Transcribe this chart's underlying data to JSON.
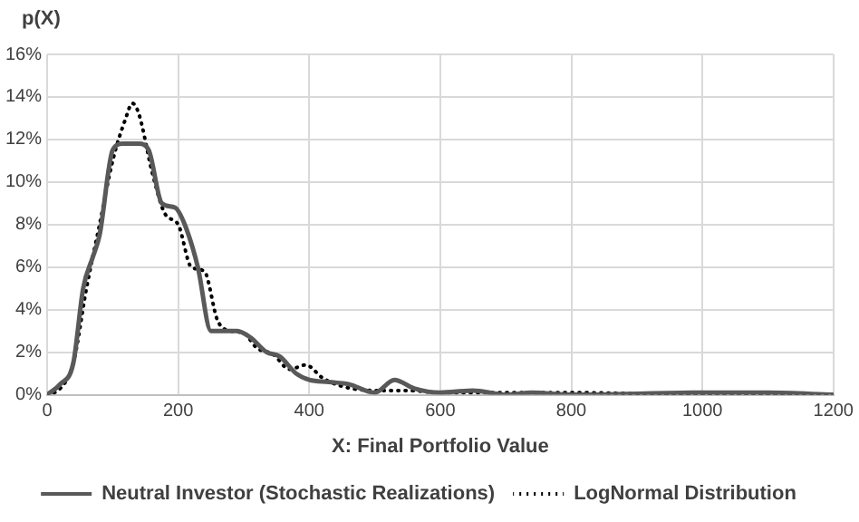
{
  "chart_data": {
    "type": "line",
    "ylabel": "p(X)",
    "xlabel": "X: Final Portfolio Value",
    "series": [
      {
        "name": "Neutral Investor (Stochastic Realizations)",
        "color": "#595959",
        "line_style": "solid",
        "x": [
          0,
          20,
          40,
          55,
          70,
          80,
          100,
          115,
          140,
          155,
          175,
          195,
          210,
          230,
          250,
          270,
          290,
          310,
          335,
          355,
          380,
          400,
          430,
          460,
          500,
          530,
          560,
          600,
          650,
          700,
          740,
          800,
          1000,
          1100,
          1200
        ],
        "values": [
          0,
          0.5,
          1.5,
          5,
          6.5,
          7.5,
          11.5,
          11.8,
          11.8,
          11.5,
          9,
          8.8,
          8,
          6,
          3,
          3,
          3,
          2.7,
          2,
          1.8,
          1,
          0.7,
          0.6,
          0.5,
          0.1,
          0.7,
          0.3,
          0.1,
          0.2,
          0,
          0.1,
          0,
          0.1,
          0.1,
          0
        ]
      },
      {
        "name": "LogNormal Distribution",
        "color": "#000000",
        "line_style": "dotted",
        "x": [
          0,
          20,
          40,
          60,
          80,
          100,
          120,
          130,
          140,
          160,
          180,
          200,
          220,
          240,
          260,
          280,
          300,
          320,
          345,
          370,
          395,
          420,
          450,
          500,
          550,
          600,
          700,
          800,
          1000,
          1200
        ],
        "values": [
          0,
          0.3,
          1.5,
          5,
          8,
          11,
          13,
          13.7,
          13.2,
          10.5,
          8.5,
          8,
          6,
          5.8,
          3.5,
          3,
          2.9,
          2.2,
          1.9,
          1.2,
          1.4,
          0.8,
          0.4,
          0.2,
          0.2,
          0.1,
          0.1,
          0.1,
          0,
          0
        ]
      }
    ],
    "xlim": [
      0,
      1200
    ],
    "xticks": [
      0,
      200,
      400,
      600,
      800,
      1000,
      1200
    ],
    "ylim": [
      0,
      16
    ],
    "yticks": [
      {
        "value": 0,
        "label": "0%"
      },
      {
        "value": 2,
        "label": "2%"
      },
      {
        "value": 4,
        "label": "4%"
      },
      {
        "value": 6,
        "label": "6%"
      },
      {
        "value": 8,
        "label": "8%"
      },
      {
        "value": 10,
        "label": "10%"
      },
      {
        "value": 12,
        "label": "12%"
      },
      {
        "value": 14,
        "label": "14%"
      },
      {
        "value": 16,
        "label": "16%"
      }
    ],
    "grid": true,
    "legend": "bottom",
    "marker": "none"
  }
}
